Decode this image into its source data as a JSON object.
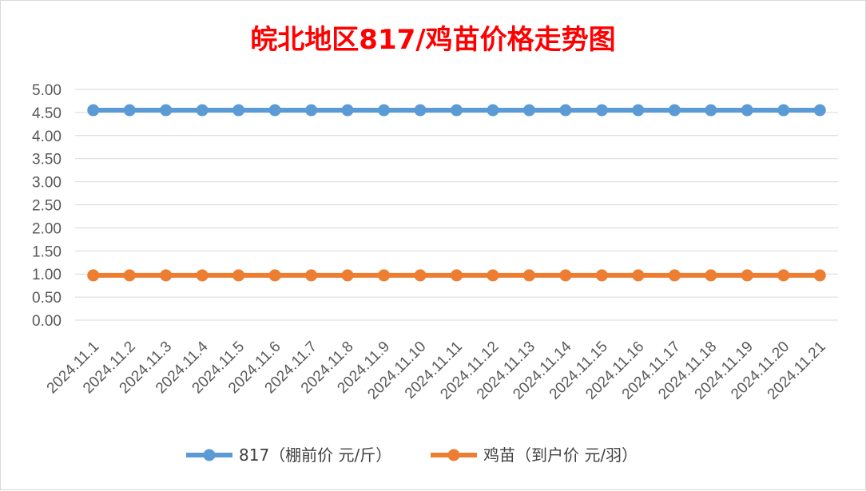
{
  "chart_data": {
    "type": "line",
    "title": "皖北地区817/鸡苗价格走势图",
    "title_color": "#ff0000",
    "categories": [
      "2024.11.1",
      "2024.11.2",
      "2024.11.3",
      "2024.11.4",
      "2024.11.5",
      "2024.11.6",
      "2024.11.7",
      "2024.11.8",
      "2024.11.9",
      "2024.11.10",
      "2024.11.11",
      "2024.11.12",
      "2024.11.13",
      "2024.11.14",
      "2024.11.15",
      "2024.11.16",
      "2024.11.17",
      "2024.11.18",
      "2024.11.19",
      "2024.11.20",
      "2024.11.21"
    ],
    "y_ticks": [
      "0.00",
      "0.50",
      "1.00",
      "1.50",
      "2.00",
      "2.50",
      "3.00",
      "3.50",
      "4.00",
      "4.50",
      "5.00"
    ],
    "ylim": [
      0,
      5
    ],
    "grid": true,
    "legend_position": "bottom",
    "series": [
      {
        "name": "817（棚前价 元/斤）",
        "color": "#5b9bd5",
        "values": [
          4.55,
          4.55,
          4.55,
          4.55,
          4.55,
          4.55,
          4.55,
          4.55,
          4.55,
          4.55,
          4.55,
          4.55,
          4.55,
          4.55,
          4.55,
          4.55,
          4.55,
          4.55,
          4.55,
          4.55,
          4.55
        ]
      },
      {
        "name": "鸡苗（到户价 元/羽）",
        "color": "#ed7d31",
        "values": [
          0.97,
          0.97,
          0.97,
          0.97,
          0.97,
          0.97,
          0.97,
          0.97,
          0.97,
          0.97,
          0.97,
          0.97,
          0.97,
          0.97,
          0.97,
          0.97,
          0.97,
          0.97,
          0.97,
          0.97,
          0.97
        ]
      }
    ]
  }
}
